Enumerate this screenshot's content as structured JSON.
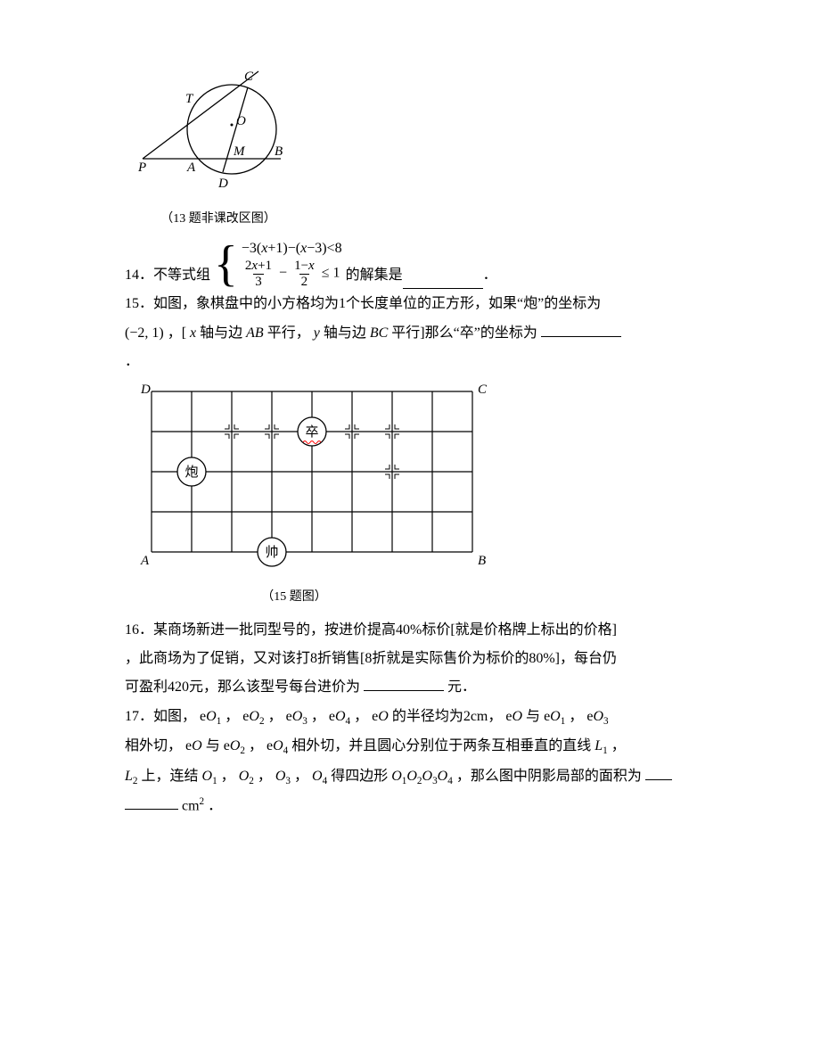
{
  "fig13": {
    "caption": "（13 题非课改区图）",
    "labels": {
      "P": "P",
      "T": "T",
      "C": "C",
      "O": "O",
      "A": "A",
      "M": "M",
      "B": "B",
      "D": "D"
    },
    "stroke": "#000000",
    "fill": "#ffffff"
  },
  "q14": {
    "prefix": "14．不等式组",
    "line1_a": "−3(",
    "line1_b": "x",
    "line1_c": "+1)−(",
    "line1_d": "x",
    "line1_e": "−3)<8",
    "line2_f1_num": "2x+1",
    "line2_f1_den": "3",
    "line2_mid": " − ",
    "line2_f2_num": "1−x",
    "line2_f2_den": "2",
    "line2_tail": " ≤ 1",
    "after": "的解集是",
    "period": "．"
  },
  "q15": {
    "l1": "15．如图，象棋盘中的小方格均为1个长度单位的正方形，如果“炮”的坐标为",
    "coord": "(−2, 1)",
    "l2a": "，[",
    "xaxis": "x",
    "l2b": "轴与边",
    "AB": "AB",
    "l2c": "平行，",
    "yaxis": "y",
    "l2d": "轴与边",
    "BC": "BC",
    "l2e": "平行]那么“卒”的坐标为",
    "period": "．"
  },
  "fig15": {
    "caption": "（15 题图）",
    "labels": {
      "A": "A",
      "B": "B",
      "C": "C",
      "D": "D"
    },
    "pieces": {
      "pao": "炮",
      "zu": "卒",
      "shuai": "帅"
    },
    "cols": 8,
    "rows": 4,
    "cell": 45,
    "stroke": "#000000",
    "zu_wavy_color": "#ff0000",
    "piece_positions": {
      "pao": {
        "col": 1,
        "row": 2
      },
      "zu": {
        "col": 4,
        "row": 1
      },
      "shuai": {
        "col": 3,
        "row": 4
      }
    },
    "cross_marks": [
      {
        "col": 2,
        "row": 1
      },
      {
        "col": 3,
        "row": 1
      },
      {
        "col": 5,
        "row": 1
      },
      {
        "col": 6,
        "row": 1
      },
      {
        "col": 6,
        "row": 2
      }
    ]
  },
  "q16": {
    "l1": "16．某商场新进一批同型号的，按进价提高40%标价[就是价格牌上标出的价格]",
    "l2": "，此商场为了促销，又对该打8折销售[8折就是实际售价为标价的80%]，每台仍",
    "l3a": "可盈利420元，那么该型号每台进价为",
    "l3b": "元．"
  },
  "q17": {
    "l1a": "17．如图，",
    "eO": "e",
    "O": "O",
    "comma": "，",
    "l1b": "的半径均为2cm，",
    "and": "与",
    "l2a": "相外切，",
    "l2b": "相外切，并且圆心分别位于两条互相垂直的直线",
    "L": "L",
    "l3a": "上，连结",
    "l3b": "得四边形",
    "l3c": "，那么图中阴影局部的面积为",
    "unit_a": "cm",
    "unit_b": "2",
    "period": "．"
  }
}
